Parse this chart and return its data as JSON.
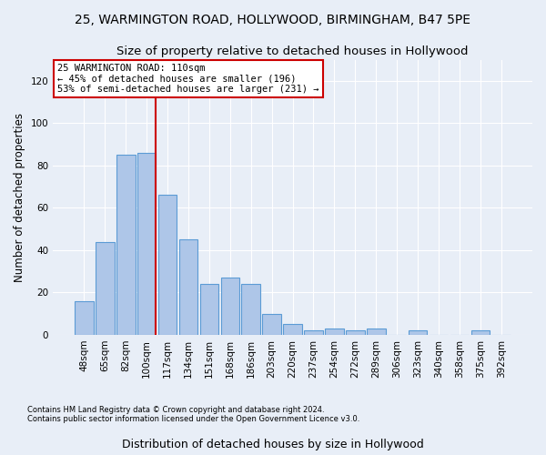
{
  "title1": "25, WARMINGTON ROAD, HOLLYWOOD, BIRMINGHAM, B47 5PE",
  "title2": "Size of property relative to detached houses in Hollywood",
  "xlabel": "Distribution of detached houses by size in Hollywood",
  "ylabel": "Number of detached properties",
  "footer1": "Contains HM Land Registry data © Crown copyright and database right 2024.",
  "footer2": "Contains public sector information licensed under the Open Government Licence v3.0.",
  "categories": [
    "48sqm",
    "65sqm",
    "82sqm",
    "100sqm",
    "117sqm",
    "134sqm",
    "151sqm",
    "168sqm",
    "186sqm",
    "203sqm",
    "220sqm",
    "237sqm",
    "254sqm",
    "272sqm",
    "289sqm",
    "306sqm",
    "323sqm",
    "340sqm",
    "358sqm",
    "375sqm",
    "392sqm"
  ],
  "values": [
    16,
    44,
    85,
    86,
    66,
    45,
    24,
    27,
    24,
    10,
    5,
    2,
    3,
    2,
    3,
    0,
    2,
    0,
    0,
    2,
    0
  ],
  "bar_color": "#aec6e8",
  "bar_edge_color": "#5b9bd5",
  "red_line_color": "#cc0000",
  "annotation_text": "25 WARMINGTON ROAD: 110sqm\n← 45% of detached houses are smaller (196)\n53% of semi-detached houses are larger (231) →",
  "annotation_box_color": "#ffffff",
  "annotation_box_edge_color": "#cc0000",
  "ylim": [
    0,
    130
  ],
  "yticks": [
    0,
    20,
    40,
    60,
    80,
    100,
    120
  ],
  "background_color": "#e8eef7",
  "plot_background_color": "#e8eef7",
  "grid_color": "#ffffff",
  "title1_fontsize": 10,
  "title2_fontsize": 9.5,
  "xlabel_fontsize": 9,
  "ylabel_fontsize": 8.5,
  "tick_fontsize": 7.5,
  "footer_fontsize": 6,
  "annot_fontsize": 7.5
}
